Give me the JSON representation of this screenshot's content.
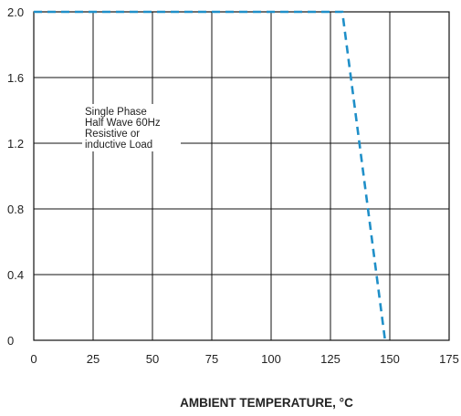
{
  "chart_data": {
    "type": "line",
    "title": "",
    "xlabel": "AMBIENT TEMPERATURE, °C",
    "ylabel": "",
    "xlim": [
      0,
      175
    ],
    "ylim": [
      0,
      2.0
    ],
    "x_ticks": [
      "0",
      "25",
      "50",
      "75",
      "100",
      "125",
      "150",
      "175"
    ],
    "y_ticks": [
      "0",
      "0.4",
      "0.8",
      "1.2",
      "1.6",
      "2.0"
    ],
    "grid": true,
    "series": [
      {
        "style": "dashed",
        "color": "#1f8fc8",
        "x": [
          0,
          130,
          148
        ],
        "y": [
          2.0,
          2.0,
          0
        ]
      }
    ],
    "annotation": [
      "Single Phase",
      "Half Wave 60Hz",
      "Resistive or",
      "inductive Load"
    ]
  }
}
